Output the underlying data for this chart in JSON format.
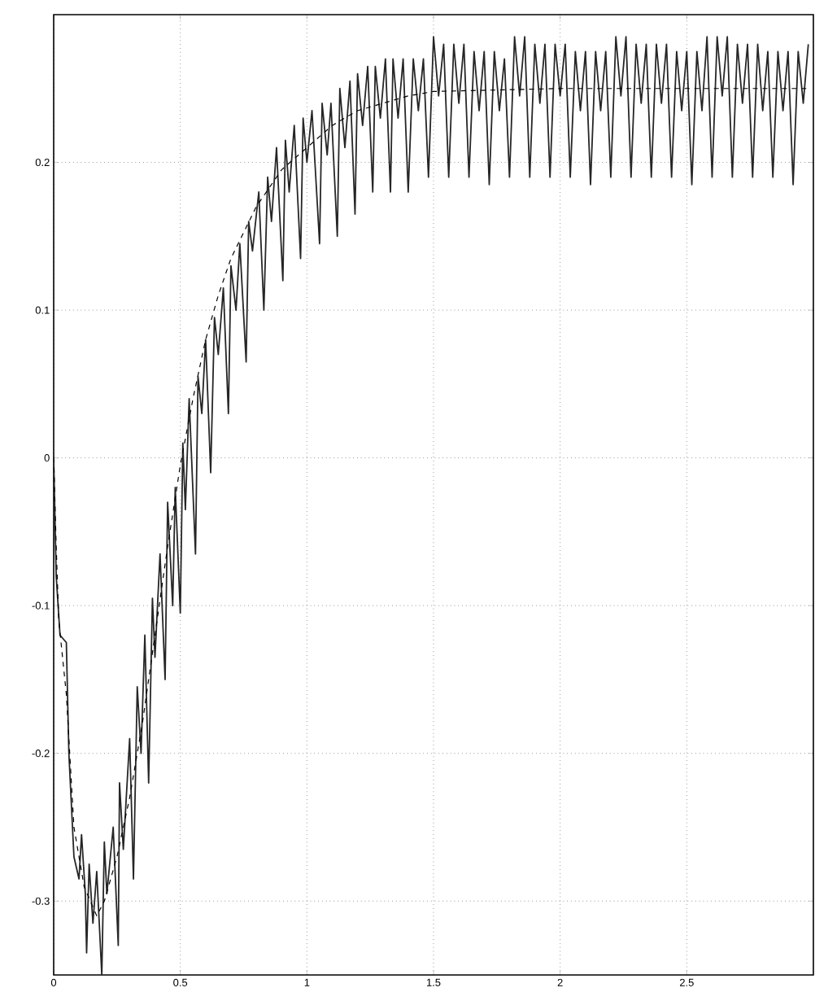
{
  "chart_data": {
    "type": "line",
    "xlim": [
      0,
      3
    ],
    "ylim": [
      -0.35,
      0.3
    ],
    "xticks": [
      0,
      0.5,
      1,
      1.5,
      2,
      2.5
    ],
    "yticks": [
      -0.3,
      -0.2,
      -0.1,
      0,
      0.1,
      0.2
    ],
    "grid": true,
    "marker": "none",
    "series": [
      {
        "color": "#262626",
        "line_style": "solid",
        "x": [
          0,
          0.01,
          0.025,
          0.05,
          0.06,
          0.08,
          0.1,
          0.11,
          0.125,
          0.13,
          0.14,
          0.155,
          0.17,
          0.19,
          0.2,
          0.21,
          0.235,
          0.255,
          0.26,
          0.275,
          0.3,
          0.315,
          0.33,
          0.345,
          0.36,
          0.375,
          0.39,
          0.4,
          0.42,
          0.44,
          0.45,
          0.47,
          0.48,
          0.5,
          0.51,
          0.52,
          0.535,
          0.56,
          0.57,
          0.585,
          0.6,
          0.62,
          0.635,
          0.65,
          0.67,
          0.69,
          0.7,
          0.72,
          0.735,
          0.76,
          0.77,
          0.785,
          0.81,
          0.83,
          0.845,
          0.86,
          0.88,
          0.905,
          0.915,
          0.93,
          0.95,
          0.975,
          0.985,
          1.0,
          1.02,
          1.05,
          1.06,
          1.08,
          1.095,
          1.12,
          1.13,
          1.15,
          1.17,
          1.19,
          1.2,
          1.22,
          1.24,
          1.26,
          1.27,
          1.29,
          1.31,
          1.33,
          1.34,
          1.36,
          1.38,
          1.4,
          1.42,
          1.44,
          1.46,
          1.48,
          1.5,
          1.52,
          1.54,
          1.56,
          1.58,
          1.6,
          1.62,
          1.64,
          1.66,
          1.68,
          1.7,
          1.72,
          1.74,
          1.76,
          1.78,
          1.8,
          1.82,
          1.84,
          1.86,
          1.88,
          1.9,
          1.92,
          1.94,
          1.96,
          1.98,
          2.0,
          2.02,
          2.04,
          2.06,
          2.08,
          2.1,
          2.12,
          2.14,
          2.16,
          2.18,
          2.2,
          2.22,
          2.24,
          2.26,
          2.28,
          2.3,
          2.32,
          2.34,
          2.36,
          2.38,
          2.4,
          2.42,
          2.44,
          2.46,
          2.48,
          2.5,
          2.52,
          2.54,
          2.56,
          2.58,
          2.6,
          2.62,
          2.64,
          2.66,
          2.68,
          2.7,
          2.72,
          2.74,
          2.76,
          2.78,
          2.8,
          2.82,
          2.84,
          2.86,
          2.88,
          2.9,
          2.92,
          2.94,
          2.96,
          2.98
        ],
        "values": [
          0,
          -0.08,
          -0.12,
          -0.125,
          -0.2,
          -0.27,
          -0.285,
          -0.255,
          -0.295,
          -0.335,
          -0.275,
          -0.315,
          -0.28,
          -0.35,
          -0.26,
          -0.295,
          -0.25,
          -0.33,
          -0.22,
          -0.265,
          -0.19,
          -0.285,
          -0.155,
          -0.2,
          -0.12,
          -0.22,
          -0.095,
          -0.135,
          -0.065,
          -0.15,
          -0.03,
          -0.1,
          -0.02,
          -0.105,
          0.01,
          -0.035,
          0.04,
          -0.065,
          0.055,
          0.03,
          0.08,
          -0.01,
          0.095,
          0.07,
          0.115,
          0.03,
          0.13,
          0.1,
          0.145,
          0.065,
          0.16,
          0.14,
          0.18,
          0.1,
          0.19,
          0.16,
          0.21,
          0.12,
          0.215,
          0.18,
          0.225,
          0.135,
          0.23,
          0.2,
          0.235,
          0.145,
          0.24,
          0.205,
          0.24,
          0.15,
          0.25,
          0.21,
          0.255,
          0.165,
          0.26,
          0.225,
          0.265,
          0.18,
          0.265,
          0.23,
          0.27,
          0.18,
          0.27,
          0.23,
          0.27,
          0.18,
          0.27,
          0.235,
          0.27,
          0.19,
          0.285,
          0.245,
          0.28,
          0.19,
          0.28,
          0.24,
          0.28,
          0.19,
          0.275,
          0.235,
          0.275,
          0.185,
          0.275,
          0.235,
          0.27,
          0.19,
          0.285,
          0.245,
          0.285,
          0.19,
          0.28,
          0.24,
          0.28,
          0.19,
          0.28,
          0.245,
          0.28,
          0.19,
          0.275,
          0.235,
          0.275,
          0.185,
          0.275,
          0.235,
          0.275,
          0.19,
          0.285,
          0.245,
          0.285,
          0.19,
          0.28,
          0.24,
          0.28,
          0.19,
          0.28,
          0.24,
          0.28,
          0.19,
          0.275,
          0.235,
          0.275,
          0.185,
          0.275,
          0.235,
          0.285,
          0.19,
          0.285,
          0.245,
          0.285,
          0.19,
          0.28,
          0.24,
          0.28,
          0.19,
          0.28,
          0.235,
          0.275,
          0.19,
          0.275,
          0.235,
          0.275,
          0.185,
          0.275,
          0.24,
          0.28
        ]
      },
      {
        "color": "#000000",
        "line_style": "dashed",
        "x": [
          0,
          0.01,
          0.02,
          0.05,
          0.08,
          0.12,
          0.17,
          0.2,
          0.25,
          0.3,
          0.35,
          0.4,
          0.45,
          0.5,
          0.55,
          0.6,
          0.65,
          0.7,
          0.8,
          0.9,
          1.0,
          1.1,
          1.2,
          1.3,
          1.4,
          1.5,
          2.0,
          2.98
        ],
        "values": [
          0,
          -0.06,
          -0.11,
          -0.16,
          -0.25,
          -0.29,
          -0.31,
          -0.3,
          -0.27,
          -0.23,
          -0.18,
          -0.12,
          -0.06,
          -0.005,
          0.04,
          0.08,
          0.11,
          0.135,
          0.17,
          0.195,
          0.21,
          0.225,
          0.235,
          0.24,
          0.245,
          0.248,
          0.25,
          0.25
        ]
      }
    ]
  }
}
